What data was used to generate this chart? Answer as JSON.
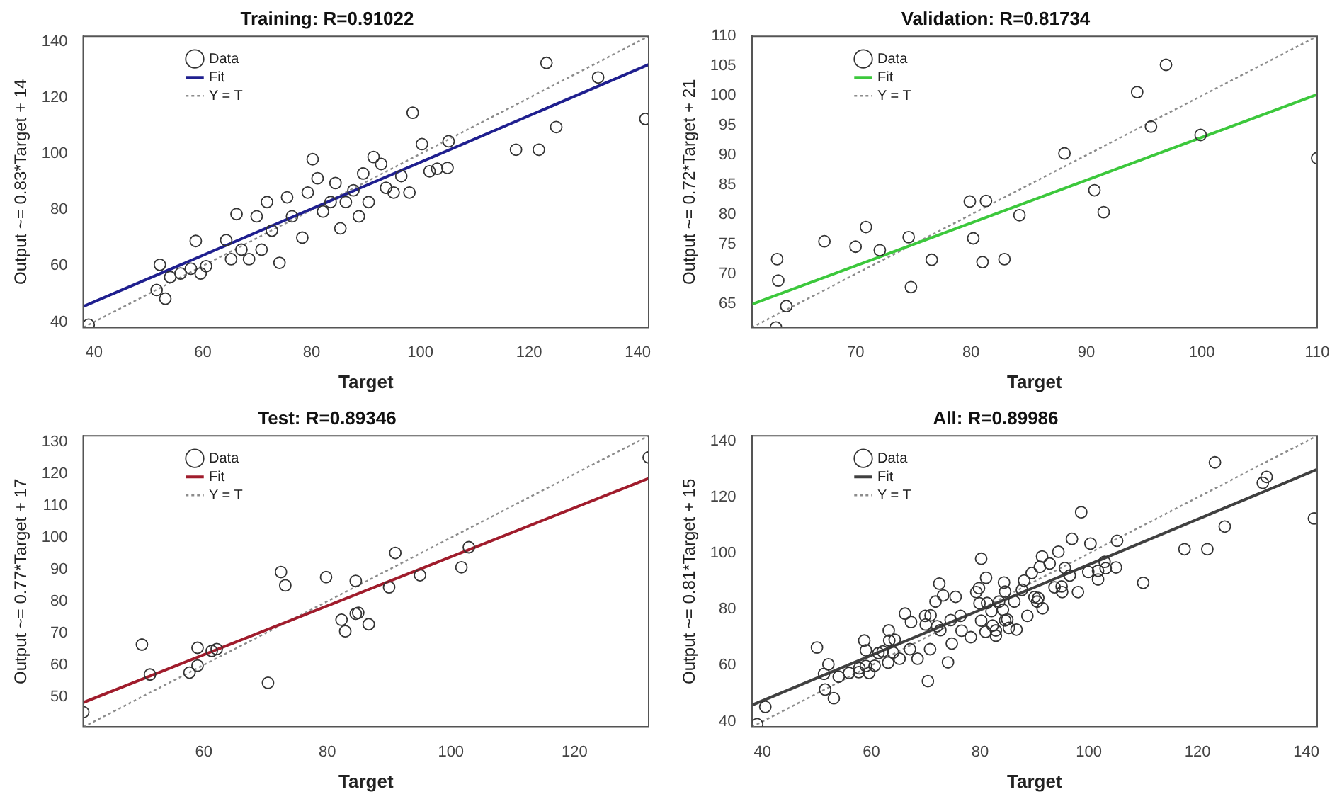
{
  "chart_data": [
    {
      "type": "scatter",
      "title": "Training: R=0.91022",
      "xlabel": "Target",
      "ylabel": "Output ~= 0.83*Target + 14",
      "xlim": [
        38,
        142
      ],
      "ylim": [
        38,
        142
      ],
      "xticks": [
        40,
        60,
        80,
        100,
        120,
        140
      ],
      "yticks": [
        40,
        60,
        80,
        100,
        120,
        140
      ],
      "legend": "top left",
      "series": [
        {
          "name": "Data",
          "type": "scatter",
          "marker": "circle",
          "color": "#333333",
          "x": [
            39,
            58.7,
            53.1,
            51.5,
            52.1,
            54,
            55.9,
            57.8,
            59.6,
            60.6,
            64.3,
            65.2,
            66.2,
            67.1,
            68.5,
            69.9,
            70.8,
            71.8,
            72.7,
            74.1,
            75.5,
            76.4,
            78.3,
            79.3,
            80.2,
            81.1,
            82.1,
            83.5,
            84.4,
            85.3,
            86.3,
            87.7,
            88.7,
            89.5,
            90.5,
            91.4,
            92.8,
            93.7,
            95.1,
            96.5,
            98,
            98.6,
            100.3,
            101.7,
            103.1,
            105,
            105.2,
            117.6,
            121.8,
            123.2,
            125,
            132.7,
            141.4
          ],
          "values": [
            39,
            68.9,
            48.3,
            51.4,
            60.4,
            56,
            57.3,
            59,
            57.3,
            59.9,
            69.2,
            62.4,
            78.5,
            65.8,
            62.4,
            77.7,
            65.8,
            82.8,
            72.6,
            61.1,
            84.5,
            77.7,
            70.1,
            86.2,
            98.1,
            91.3,
            79.4,
            82.8,
            89.6,
            73.4,
            82.8,
            87,
            77.7,
            93,
            82.8,
            98.9,
            96.4,
            87.9,
            86.2,
            92.1,
            86.2,
            114.7,
            103.5,
            93.8,
            94.7,
            95,
            104.5,
            101.5,
            101.5,
            132.5,
            109.6,
            127.3,
            112.5
          ]
        },
        {
          "name": "Fit",
          "type": "line",
          "color": "#1f1f8f",
          "x": [
            38,
            142
          ],
          "values": [
            45.5,
            131.9
          ]
        },
        {
          "name": "Y = T",
          "type": "line",
          "line_style": "dotted",
          "color": "#8c8c8c",
          "x": [
            38,
            142
          ],
          "values": [
            38,
            142
          ]
        }
      ]
    },
    {
      "type": "scatter",
      "title": "Validation: R=0.81734",
      "xlabel": "Target",
      "ylabel": "Output ~= 0.72*Target + 21",
      "xlim": [
        61,
        110
      ],
      "ylim": [
        61,
        110
      ],
      "xticks": [
        70,
        80,
        90,
        100,
        110
      ],
      "yticks": [
        65,
        70,
        75,
        80,
        85,
        90,
        95,
        100,
        105,
        110
      ],
      "legend": "top left",
      "series": [
        {
          "name": "Data",
          "type": "scatter",
          "marker": "circle",
          "color": "#333333",
          "x": [
            63.1,
            63.3,
            63.2,
            64,
            67.3,
            70,
            70.9,
            72.1,
            74.6,
            74.8,
            76.6,
            79.9,
            80.2,
            81,
            81.3,
            82.9,
            84.2,
            88.1,
            90.7,
            91.5,
            94.4,
            95.6,
            96.9,
            99.9,
            110
          ],
          "values": [
            61,
            68.9,
            72.5,
            64.6,
            75.5,
            74.6,
            77.9,
            74,
            76.2,
            67.8,
            72.4,
            82.2,
            76,
            72,
            82.3,
            72.5,
            79.9,
            90.3,
            84.1,
            80.4,
            100.6,
            94.8,
            105.2,
            93.4,
            89.5
          ]
        },
        {
          "name": "Fit",
          "type": "line",
          "color": "#3cc83c",
          "x": [
            61,
            110
          ],
          "values": [
            64.9,
            100.2
          ]
        },
        {
          "name": "Y = T",
          "type": "line",
          "line_style": "dotted",
          "color": "#8c8c8c",
          "x": [
            61,
            110
          ],
          "values": [
            61,
            110
          ]
        }
      ]
    },
    {
      "type": "scatter",
      "title": "Test: R=0.89346",
      "xlabel": "Target",
      "ylabel": "Output ~= 0.77*Target + 17",
      "xlim": [
        40.5,
        132
      ],
      "ylim": [
        40.5,
        132
      ],
      "xticks": [
        60,
        80,
        100,
        120
      ],
      "yticks": [
        50,
        60,
        70,
        80,
        90,
        100,
        110,
        120,
        130
      ],
      "legend": "top left",
      "series": [
        {
          "name": "Data",
          "type": "scatter",
          "marker": "circle",
          "color": "#333333",
          "x": [
            40.5,
            50,
            51.3,
            57.7,
            59,
            59,
            61.3,
            62.1,
            70.4,
            72.5,
            73.2,
            79.8,
            82.3,
            82.9,
            84.6,
            84.6,
            85,
            86.7,
            90,
            91,
            95,
            101.7,
            102.9,
            132
          ],
          "values": [
            45.2,
            66.4,
            57,
            57.6,
            59.8,
            65.4,
            64.4,
            65,
            54.4,
            89.2,
            85,
            87.6,
            74.2,
            70.6,
            86.4,
            76.1,
            76.4,
            72.8,
            84.4,
            95.2,
            88.2,
            90.7,
            97,
            125.2
          ]
        },
        {
          "name": "Fit",
          "type": "line",
          "color": "#a01c2c",
          "x": [
            40.5,
            132
          ],
          "values": [
            48.2,
            118.6
          ]
        },
        {
          "name": "Y = T",
          "type": "line",
          "line_style": "dotted",
          "color": "#8c8c8c",
          "x": [
            40.5,
            132
          ],
          "values": [
            40.5,
            132
          ]
        }
      ]
    },
    {
      "type": "scatter",
      "title": "All: R=0.89986",
      "xlabel": "Target",
      "ylabel": "Output ~= 0.81*Target + 15",
      "xlim": [
        38,
        142
      ],
      "ylim": [
        38,
        142
      ],
      "xticks": [
        40,
        60,
        80,
        100,
        120,
        140
      ],
      "yticks": [
        40,
        60,
        80,
        100,
        120,
        140
      ],
      "legend": "top left",
      "series": [
        {
          "name": "Data",
          "type": "scatter",
          "marker": "circle",
          "color": "#333333",
          "x": [
            39,
            58.7,
            53.1,
            51.5,
            52.1,
            54,
            55.9,
            57.8,
            59.6,
            60.6,
            64.3,
            65.2,
            66.2,
            67.1,
            68.5,
            69.9,
            70.8,
            71.8,
            72.7,
            74.1,
            75.5,
            76.4,
            78.3,
            79.3,
            80.2,
            81.1,
            82.1,
            83.5,
            84.4,
            85.3,
            86.3,
            87.7,
            88.7,
            89.5,
            90.5,
            91.4,
            92.8,
            93.7,
            95.1,
            96.5,
            98,
            98.6,
            100.3,
            101.7,
            103.1,
            105,
            105.2,
            117.6,
            121.8,
            123.2,
            125,
            132.7,
            141.4,
            63.1,
            63.3,
            63.2,
            64,
            67.3,
            70,
            70.9,
            72.1,
            74.6,
            74.8,
            76.6,
            79.9,
            80.2,
            81,
            81.3,
            82.9,
            84.2,
            88.1,
            90.7,
            91.5,
            94.4,
            95.6,
            96.9,
            99.9,
            110,
            40.5,
            50,
            51.3,
            57.7,
            59,
            59,
            61.3,
            62.1,
            70.4,
            72.5,
            73.2,
            79.8,
            82.3,
            82.9,
            84.6,
            84.6,
            85,
            86.7,
            90,
            91,
            95,
            101.7,
            102.9,
            132
          ],
          "values": [
            39,
            68.9,
            48.3,
            51.4,
            60.4,
            56,
            57.3,
            59,
            57.3,
            59.9,
            69.2,
            62.4,
            78.5,
            65.8,
            62.4,
            77.7,
            65.8,
            82.8,
            72.6,
            61.1,
            84.5,
            77.7,
            70.1,
            86.2,
            98.1,
            91.3,
            79.4,
            82.8,
            89.6,
            73.4,
            82.8,
            87,
            77.7,
            93,
            82.8,
            98.9,
            96.4,
            87.9,
            86.2,
            92.1,
            86.2,
            114.7,
            103.5,
            93.8,
            94.7,
            95,
            104.5,
            101.5,
            101.5,
            132.5,
            109.6,
            127.3,
            112.5,
            61,
            68.9,
            72.5,
            64.6,
            75.5,
            74.6,
            77.9,
            74,
            76.2,
            67.8,
            72.4,
            82.2,
            76,
            72,
            82.3,
            72.5,
            79.9,
            90.3,
            84.1,
            80.4,
            100.6,
            94.8,
            105.2,
            93.4,
            89.5,
            45.2,
            66.4,
            57,
            57.6,
            59.8,
            65.4,
            64.4,
            65,
            54.4,
            89.2,
            85,
            87.6,
            74.2,
            70.6,
            86.4,
            76.1,
            76.4,
            72.8,
            84.4,
            95.2,
            88.2,
            90.7,
            97,
            125.2
          ]
        },
        {
          "name": "Fit",
          "type": "line",
          "color": "#404040",
          "x": [
            38,
            142
          ],
          "values": [
            45.8,
            130
          ]
        },
        {
          "name": "Y = T",
          "type": "line",
          "line_style": "dotted",
          "color": "#8c8c8c",
          "x": [
            38,
            142
          ],
          "values": [
            38,
            142
          ]
        }
      ]
    }
  ]
}
